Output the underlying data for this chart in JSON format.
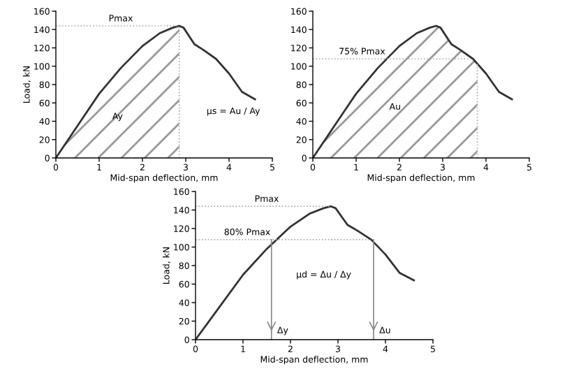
{
  "chart_data": [
    {
      "type": "line",
      "xlabel": "Mid-span deflection, mm",
      "ylabel": "Load, kN",
      "x": [
        0,
        0.5,
        1,
        1.5,
        2,
        2.4,
        2.7,
        2.85,
        2.95,
        3.2,
        3.4,
        3.7,
        4.0,
        4.3,
        4.6
      ],
      "series": [
        {
          "color": "#333333",
          "values": [
            0,
            35,
            70,
            98,
            122,
            136,
            142,
            144,
            142,
            124,
            118,
            108,
            92,
            72,
            64
          ]
        },
        {
          "type": "area",
          "name": "Ay",
          "color": "#999999",
          "x": [
            0,
            0.5,
            1,
            1.5,
            2,
            2.4,
            2.7,
            2.85
          ],
          "values": [
            0,
            35,
            70,
            98,
            122,
            136,
            142,
            144
          ]
        }
      ],
      "xlim": [
        0,
        5
      ],
      "xticks": [
        0,
        1,
        2,
        3,
        4,
        5
      ],
      "ylim": [
        0,
        160
      ],
      "yticks": [
        0,
        20,
        40,
        60,
        80,
        100,
        120,
        140,
        160
      ],
      "grid": false,
      "ref_lines": [
        {
          "axis": "y",
          "value": 144,
          "label": "Pmax"
        },
        {
          "axis": "x",
          "value": 2.85
        }
      ],
      "annotations": [
        "μs = Au / Ay"
      ]
    },
    {
      "type": "line",
      "xlabel": "Mid-span deflection, mm",
      "x": [
        0,
        0.5,
        1,
        1.5,
        2,
        2.4,
        2.7,
        2.85,
        2.95,
        3.2,
        3.4,
        3.7,
        4.0,
        4.3,
        4.6
      ],
      "series": [
        {
          "color": "#333333",
          "values": [
            0,
            35,
            70,
            98,
            122,
            136,
            142,
            144,
            142,
            124,
            118,
            108,
            92,
            72,
            64
          ]
        },
        {
          "type": "area",
          "name": "Au",
          "color": "#999999",
          "x": [
            0,
            0.5,
            1,
            1.5,
            2,
            2.4,
            2.7,
            2.85,
            2.95,
            3.2,
            3.4,
            3.7,
            3.8
          ],
          "values": [
            0,
            35,
            70,
            98,
            122,
            136,
            142,
            144,
            142,
            124,
            118,
            108,
            103
          ]
        }
      ],
      "xlim": [
        0,
        5
      ],
      "xticks": [
        0,
        1,
        2,
        3,
        4,
        5
      ],
      "ylim": [
        0,
        160
      ],
      "yticks": [
        0,
        20,
        40,
        60,
        80,
        100,
        120,
        140,
        160
      ],
      "grid": false,
      "ref_lines": [
        {
          "axis": "y",
          "value": 108,
          "label": "75% Pmax"
        },
        {
          "axis": "x",
          "value": 3.8
        }
      ]
    },
    {
      "type": "line",
      "xlabel": "Mid-span deflection, mm",
      "ylabel": "Load, kN",
      "x": [
        0,
        0.5,
        1,
        1.5,
        2,
        2.4,
        2.7,
        2.85,
        2.95,
        3.2,
        3.4,
        3.7,
        4.0,
        4.3,
        4.6
      ],
      "series": [
        {
          "color": "#333333",
          "values": [
            0,
            35,
            70,
            98,
            122,
            136,
            142,
            144,
            142,
            124,
            118,
            108,
            92,
            72,
            64
          ]
        }
      ],
      "xlim": [
        0,
        5
      ],
      "xticks": [
        0,
        1,
        2,
        3,
        4,
        5
      ],
      "ylim": [
        0,
        160
      ],
      "yticks": [
        0,
        20,
        40,
        60,
        80,
        100,
        120,
        140,
        160
      ],
      "grid": false,
      "ref_lines": [
        {
          "axis": "y",
          "value": 144,
          "label": "Pmax"
        },
        {
          "axis": "y",
          "value": 108,
          "label": "80% Pmax"
        },
        {
          "axis": "x",
          "value": 1.6,
          "label": "Δy"
        },
        {
          "axis": "x",
          "value": 3.75,
          "label": "Δu"
        }
      ],
      "annotations": [
        "μd = Δu / Δy"
      ]
    }
  ]
}
